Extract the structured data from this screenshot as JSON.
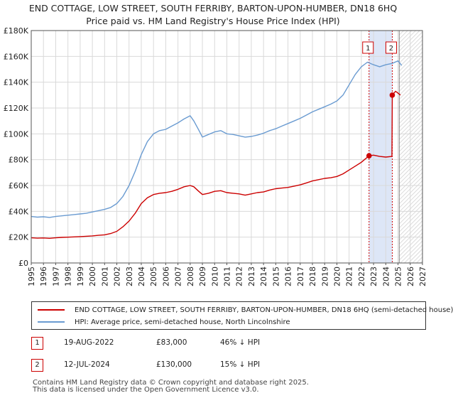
{
  "chart_data": {
    "type": "line",
    "title_line1": "END COTTAGE, LOW STREET, SOUTH FERRIBY, BARTON-UPON-HUMBER, DN18 6HQ",
    "title_line2": "Price paid vs. HM Land Registry's House Price Index (HPI)",
    "xlim": [
      1995,
      2027
    ],
    "ylim": [
      0,
      180000
    ],
    "x_ticks": [
      "1995",
      "1996",
      "1997",
      "1998",
      "1999",
      "2000",
      "2001",
      "2002",
      "2003",
      "2004",
      "2005",
      "2006",
      "2007",
      "2008",
      "2009",
      "2010",
      "2011",
      "2012",
      "2013",
      "2014",
      "2015",
      "2016",
      "2017",
      "2018",
      "2019",
      "2020",
      "2021",
      "2022",
      "2023",
      "2024",
      "2025",
      "2026",
      "2027"
    ],
    "y_ticks": [
      {
        "value": 0,
        "label": "£0"
      },
      {
        "value": 20000,
        "label": "£20K"
      },
      {
        "value": 40000,
        "label": "£40K"
      },
      {
        "value": 60000,
        "label": "£60K"
      },
      {
        "value": 80000,
        "label": "£80K"
      },
      {
        "value": 100000,
        "label": "£100K"
      },
      {
        "value": 120000,
        "label": "£120K"
      },
      {
        "value": 140000,
        "label": "£140K"
      },
      {
        "value": 160000,
        "label": "£160K"
      },
      {
        "value": 180000,
        "label": "£180K"
      }
    ],
    "grid": true,
    "shaded_span": [
      2022.63,
      2024.53
    ],
    "forecast_from": 2025.1,
    "markers": [
      {
        "label": "1",
        "x": 2022.63,
        "y": 83000
      },
      {
        "label": "2",
        "x": 2024.53,
        "y": 130000
      }
    ],
    "series": [
      {
        "name": "END COTTAGE, LOW STREET, SOUTH FERRIBY, BARTON-UPON-HUMBER, DN18 6HQ (semi-detached house)",
        "color": "#cc0000",
        "points": [
          [
            1995.0,
            19500
          ],
          [
            1995.5,
            19200
          ],
          [
            1996.0,
            19400
          ],
          [
            1996.5,
            19100
          ],
          [
            1997.0,
            19500
          ],
          [
            1997.5,
            19800
          ],
          [
            1998.0,
            20000
          ],
          [
            1998.5,
            20200
          ],
          [
            1999.0,
            20400
          ],
          [
            1999.5,
            20700
          ],
          [
            2000.0,
            21000
          ],
          [
            2000.5,
            21400
          ],
          [
            2001.0,
            21800
          ],
          [
            2001.5,
            22800
          ],
          [
            2002.0,
            24500
          ],
          [
            2002.5,
            28000
          ],
          [
            2003.0,
            32500
          ],
          [
            2003.5,
            38500
          ],
          [
            2004.0,
            46000
          ],
          [
            2004.5,
            50500
          ],
          [
            2005.0,
            53000
          ],
          [
            2005.5,
            54000
          ],
          [
            2006.0,
            54500
          ],
          [
            2006.5,
            55500
          ],
          [
            2007.0,
            57000
          ],
          [
            2007.5,
            59000
          ],
          [
            2008.0,
            60000
          ],
          [
            2008.3,
            59000
          ],
          [
            2008.7,
            55500
          ],
          [
            2009.0,
            53000
          ],
          [
            2009.5,
            54000
          ],
          [
            2010.0,
            55500
          ],
          [
            2010.5,
            56000
          ],
          [
            2011.0,
            54500
          ],
          [
            2011.5,
            54000
          ],
          [
            2012.0,
            53500
          ],
          [
            2012.5,
            52500
          ],
          [
            2013.0,
            53500
          ],
          [
            2013.5,
            54500
          ],
          [
            2014.0,
            55000
          ],
          [
            2014.5,
            56500
          ],
          [
            2015.0,
            57500
          ],
          [
            2015.5,
            58000
          ],
          [
            2016.0,
            58500
          ],
          [
            2016.5,
            59500
          ],
          [
            2017.0,
            60500
          ],
          [
            2017.5,
            62000
          ],
          [
            2018.0,
            63500
          ],
          [
            2018.5,
            64500
          ],
          [
            2019.0,
            65500
          ],
          [
            2019.5,
            66000
          ],
          [
            2020.0,
            67000
          ],
          [
            2020.5,
            69000
          ],
          [
            2021.0,
            72000
          ],
          [
            2021.5,
            75000
          ],
          [
            2022.0,
            78000
          ],
          [
            2022.63,
            83000
          ],
          [
            2023.0,
            83500
          ],
          [
            2023.5,
            82500
          ],
          [
            2024.0,
            82000
          ],
          [
            2024.5,
            82500
          ],
          [
            2024.53,
            130000
          ],
          [
            2024.8,
            133000
          ],
          [
            2025.0,
            131500
          ],
          [
            2025.2,
            130000
          ]
        ]
      },
      {
        "name": "HPI: Average price, semi-detached house, North Lincolnshire",
        "color": "#6a9bd1",
        "points": [
          [
            1995.0,
            36000
          ],
          [
            1995.5,
            35500
          ],
          [
            1996.0,
            35800
          ],
          [
            1996.5,
            35300
          ],
          [
            1997.0,
            36000
          ],
          [
            1997.5,
            36500
          ],
          [
            1998.0,
            37000
          ],
          [
            1998.5,
            37500
          ],
          [
            1999.0,
            38000
          ],
          [
            1999.5,
            38500
          ],
          [
            2000.0,
            39500
          ],
          [
            2000.5,
            40500
          ],
          [
            2001.0,
            41500
          ],
          [
            2001.5,
            43000
          ],
          [
            2002.0,
            46000
          ],
          [
            2002.5,
            51500
          ],
          [
            2003.0,
            60000
          ],
          [
            2003.5,
            71000
          ],
          [
            2004.0,
            84000
          ],
          [
            2004.5,
            94000
          ],
          [
            2005.0,
            100000
          ],
          [
            2005.5,
            102500
          ],
          [
            2006.0,
            103500
          ],
          [
            2006.5,
            106000
          ],
          [
            2007.0,
            108500
          ],
          [
            2007.5,
            111500
          ],
          [
            2008.0,
            114000
          ],
          [
            2008.3,
            110000
          ],
          [
            2008.7,
            103000
          ],
          [
            2009.0,
            97500
          ],
          [
            2009.5,
            99500
          ],
          [
            2010.0,
            101500
          ],
          [
            2010.5,
            102500
          ],
          [
            2011.0,
            100000
          ],
          [
            2011.5,
            99500
          ],
          [
            2012.0,
            98500
          ],
          [
            2012.5,
            97500
          ],
          [
            2013.0,
            98000
          ],
          [
            2013.5,
            99000
          ],
          [
            2014.0,
            100500
          ],
          [
            2014.5,
            102500
          ],
          [
            2015.0,
            104000
          ],
          [
            2015.5,
            106000
          ],
          [
            2016.0,
            108000
          ],
          [
            2016.5,
            110000
          ],
          [
            2017.0,
            112000
          ],
          [
            2017.5,
            114500
          ],
          [
            2018.0,
            117000
          ],
          [
            2018.5,
            119000
          ],
          [
            2019.0,
            121000
          ],
          [
            2019.5,
            123000
          ],
          [
            2020.0,
            125500
          ],
          [
            2020.5,
            130000
          ],
          [
            2021.0,
            138000
          ],
          [
            2021.5,
            146000
          ],
          [
            2022.0,
            152000
          ],
          [
            2022.5,
            155500
          ],
          [
            2023.0,
            153500
          ],
          [
            2023.5,
            152000
          ],
          [
            2024.0,
            153500
          ],
          [
            2024.5,
            154500
          ],
          [
            2025.0,
            156500
          ],
          [
            2025.3,
            153000
          ]
        ]
      }
    ]
  },
  "legend": {
    "entry1": "END COTTAGE, LOW STREET, SOUTH FERRIBY, BARTON-UPON-HUMBER, DN18 6HQ (semi-detached house)",
    "entry2": "HPI: Average price, semi-detached house, North Lincolnshire"
  },
  "transactions": [
    {
      "num": "1",
      "date": "19-AUG-2022",
      "price": "£83,000",
      "hpi": "46% ↓ HPI"
    },
    {
      "num": "2",
      "date": "12-JUL-2024",
      "price": "£130,000",
      "hpi": "15% ↓ HPI"
    }
  ],
  "footer": {
    "line1": "Contains HM Land Registry data © Crown copyright and database right 2025.",
    "line2": "This data is licensed under the Open Government Licence v3.0."
  },
  "colors": {
    "sale": "#cc0000",
    "hpi": "#6a9bd1",
    "shade": "#dde6f7",
    "grid": "#d9d9d9"
  }
}
